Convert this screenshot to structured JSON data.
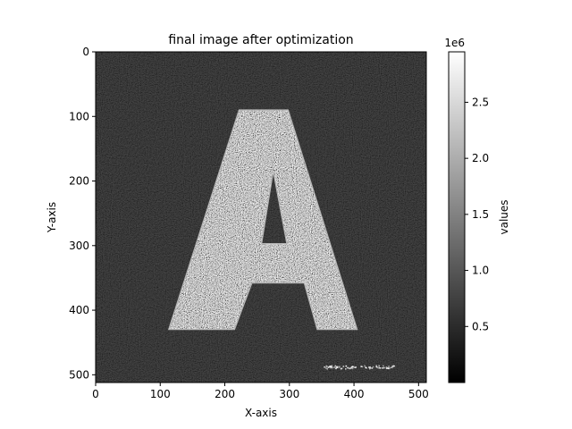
{
  "chart_data": {
    "type": "heatmap",
    "title": "final image after optimization",
    "xlabel": "X-axis",
    "ylabel": "Y-axis",
    "image_size": [
      512,
      512
    ],
    "xlim": [
      0,
      512
    ],
    "ylim": [
      512,
      0
    ],
    "x_ticks": [
      0,
      100,
      200,
      300,
      400,
      500
    ],
    "y_ticks": [
      0,
      100,
      200,
      300,
      400,
      500
    ],
    "colormap": "gray",
    "background_color": "#0d0d0d",
    "content": {
      "shape": "letter A",
      "outer_polygon": [
        [
          215,
          430
        ],
        [
          113,
          430
        ],
        [
          222,
          90
        ],
        [
          298,
          90
        ],
        [
          405,
          430
        ],
        [
          343,
          430
        ],
        [
          323,
          358
        ],
        [
          242,
          358
        ]
      ],
      "hole_polygon": [
        [
          257,
          297
        ],
        [
          296,
          297
        ],
        [
          275,
          185
        ]
      ],
      "noise_strip": {
        "x_range": [
          352,
          462
        ],
        "y_range": [
          485,
          490
        ]
      }
    },
    "colorbar": {
      "label": "values",
      "scale_label": "1e6",
      "ticks": [
        0.5,
        1.0,
        1.5,
        2.0,
        2.5
      ],
      "tick_labels": [
        "0.5",
        "1.0",
        "1.5",
        "2.0",
        "2.5"
      ],
      "range": [
        0.0,
        2.95
      ]
    },
    "grid": false
  }
}
